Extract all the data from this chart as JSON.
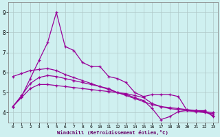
{
  "xlabel": "Windchill (Refroidissement éolien,°C)",
  "bg_color": "#cff0f0",
  "line_color": "#990099",
  "grid_color": "#b0c8c8",
  "xlim": [
    -0.5,
    23.5
  ],
  "ylim": [
    3.5,
    9.5
  ],
  "yticks": [
    4,
    5,
    6,
    7,
    8,
    9
  ],
  "xticks": [
    0,
    1,
    2,
    3,
    4,
    5,
    6,
    7,
    8,
    9,
    10,
    11,
    12,
    13,
    14,
    15,
    16,
    17,
    18,
    19,
    20,
    21,
    22,
    23
  ],
  "line1_x": [
    0,
    1,
    2,
    3,
    4,
    5,
    6,
    7,
    8,
    9,
    10,
    11,
    12,
    13,
    14,
    15,
    16,
    17,
    18,
    19,
    20,
    21,
    22,
    23
  ],
  "line1_y": [
    4.3,
    4.8,
    5.7,
    6.6,
    7.5,
    9.0,
    7.3,
    7.1,
    6.5,
    6.3,
    6.3,
    5.8,
    5.7,
    5.5,
    5.0,
    4.8,
    4.9,
    4.9,
    4.9,
    4.8,
    4.1,
    4.1,
    4.1,
    3.8
  ],
  "line2_x": [
    0,
    1,
    2,
    3,
    4,
    5,
    6,
    7,
    8,
    9,
    10,
    11,
    12,
    13,
    14,
    15,
    16,
    17,
    18,
    19,
    20,
    21,
    22,
    23
  ],
  "line2_y": [
    5.8,
    5.95,
    6.1,
    6.15,
    6.2,
    6.1,
    5.9,
    5.75,
    5.6,
    5.45,
    5.3,
    5.15,
    5.0,
    4.85,
    4.7,
    4.55,
    4.4,
    4.3,
    4.2,
    4.15,
    4.1,
    4.05,
    4.0,
    3.95
  ],
  "line3_x": [
    0,
    1,
    2,
    3,
    4,
    5,
    6,
    7,
    8,
    9,
    10,
    11,
    12,
    13,
    14,
    15,
    16,
    17,
    18,
    19,
    20,
    21,
    22,
    23
  ],
  "line3_y": [
    4.3,
    4.75,
    5.2,
    5.4,
    5.4,
    5.35,
    5.3,
    5.25,
    5.2,
    5.15,
    5.1,
    5.05,
    5.0,
    4.95,
    4.85,
    4.75,
    4.45,
    4.3,
    4.25,
    4.2,
    4.15,
    4.1,
    4.05,
    4.0
  ],
  "line4_x": [
    0,
    1,
    2,
    3,
    4,
    5,
    6,
    7,
    8,
    9,
    10,
    11,
    12,
    13,
    14,
    15,
    16,
    17,
    18,
    19,
    20,
    21,
    22,
    23
  ],
  "line4_y": [
    4.3,
    4.85,
    5.45,
    5.75,
    5.85,
    5.8,
    5.7,
    5.6,
    5.5,
    5.4,
    5.3,
    5.2,
    5.0,
    4.9,
    4.75,
    4.6,
    4.2,
    3.65,
    3.8,
    4.05,
    4.1,
    4.05,
    4.05,
    3.85
  ],
  "linewidth": 0.9,
  "markersize": 2.5
}
